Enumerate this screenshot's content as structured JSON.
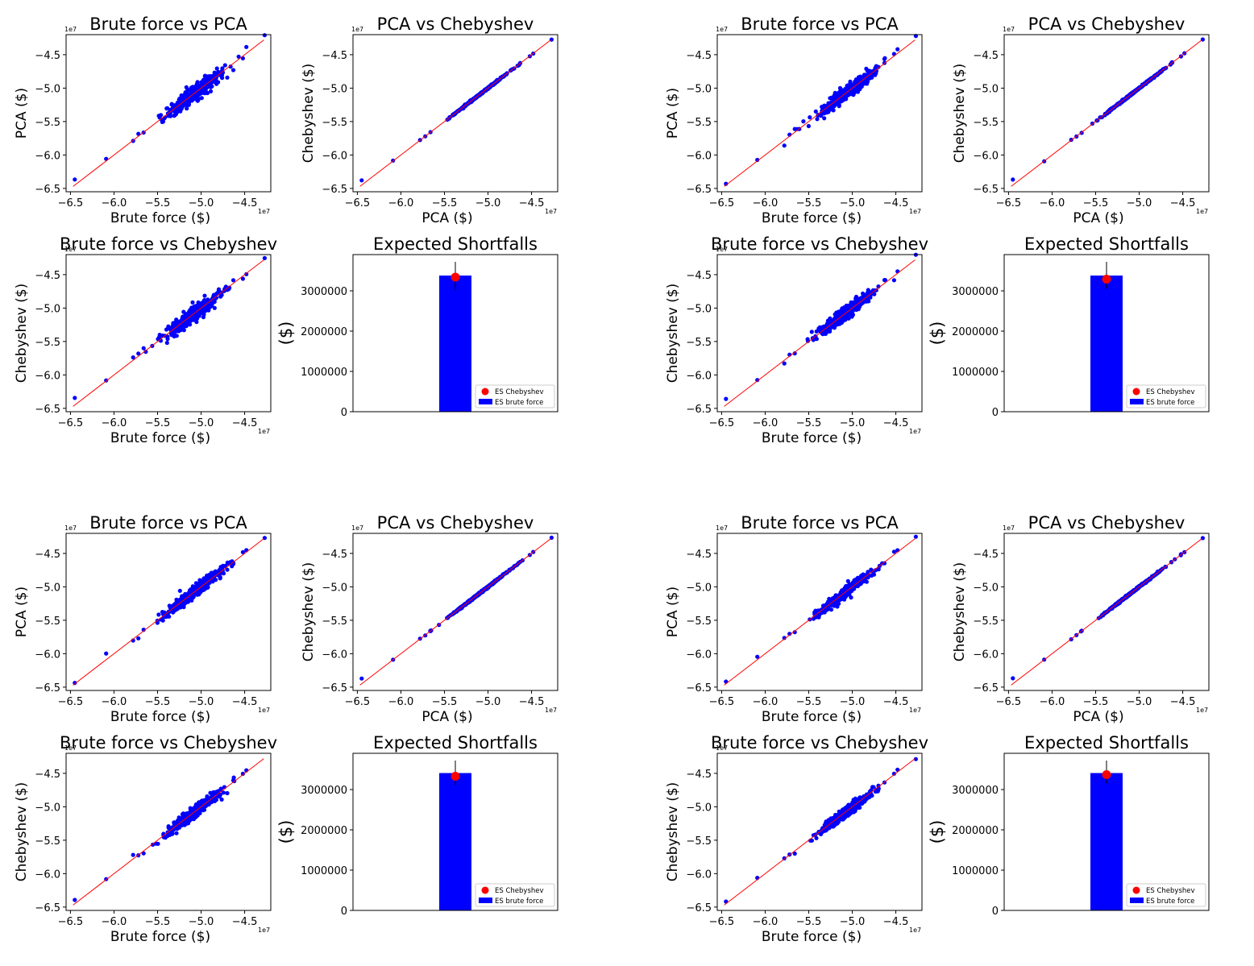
{
  "colors": {
    "scatter": "#0000ff",
    "line": "#ff0000",
    "bar": "#0000ff",
    "marker": "#ff0000",
    "axis": "#000000",
    "background": "#ffffff"
  },
  "chart_data": [
    {
      "group": "top-left",
      "subplots": [
        {
          "type": "scatter",
          "title": "Brute force vs PCA",
          "xlabel": "Brute force ($)",
          "ylabel": "PCA ($)",
          "offset_text": "1e7",
          "xlim": [
            -6.55,
            -4.2
          ],
          "ylim": [
            -6.55,
            -4.2
          ],
          "xticks": [
            -6.5,
            -6.0,
            -5.5,
            -5.0,
            -4.5
          ],
          "yticks": [
            -6.5,
            -6.0,
            -5.5,
            -5.0,
            -4.5
          ],
          "tick_labels": [
            "−6.5",
            "−6.0",
            "−5.5",
            "−5.0",
            "−4.5"
          ],
          "identity_line": [
            -6.47,
            -4.28
          ],
          "spread": 0.06
        },
        {
          "type": "scatter",
          "title": "PCA vs Chebyshev",
          "xlabel": "PCA ($)",
          "ylabel": "Chebyshev ($)",
          "offset_text": "1e7",
          "xlim": [
            -6.55,
            -4.2
          ],
          "ylim": [
            -6.55,
            -4.2
          ],
          "xticks": [
            -6.5,
            -6.0,
            -5.5,
            -5.0,
            -4.5
          ],
          "yticks": [
            -6.5,
            -6.0,
            -5.5,
            -5.0,
            -4.5
          ],
          "tick_labels": [
            "−6.5",
            "−6.0",
            "−5.5",
            "−5.0",
            "−4.5"
          ],
          "identity_line": [
            -6.47,
            -4.28
          ],
          "spread": 0.006
        },
        {
          "type": "scatter",
          "title": "Brute force vs Chebyshev",
          "xlabel": "Brute force ($)",
          "ylabel": "Chebyshev ($)",
          "offset_text": "1e7",
          "xlim": [
            -6.55,
            -4.2
          ],
          "ylim": [
            -6.55,
            -4.2
          ],
          "xticks": [
            -6.5,
            -6.0,
            -5.5,
            -5.0,
            -4.5
          ],
          "yticks": [
            -6.5,
            -6.0,
            -5.5,
            -5.0,
            -4.5
          ],
          "tick_labels": [
            "−6.5",
            "−6.0",
            "−5.5",
            "−5.0",
            "−4.5"
          ],
          "identity_line": [
            -6.47,
            -4.28
          ],
          "spread": 0.06
        },
        {
          "type": "bar",
          "title": "Expected Shortfalls",
          "ylabel": "($)",
          "ylim": [
            0,
            3900000
          ],
          "yticks": [
            0,
            1000000,
            2000000,
            3000000
          ],
          "ytick_labels": [
            "0",
            "1000000",
            "2000000",
            "3000000"
          ],
          "bar_value": 3380000,
          "marker_value": 3340000,
          "error_range": [
            3000000,
            3720000
          ],
          "legend": [
            "ES Chebyshev",
            "ES brute force"
          ]
        }
      ]
    },
    {
      "group": "top-right",
      "subplots": [
        {
          "type": "scatter",
          "title": "Brute force vs PCA",
          "xlabel": "Brute force ($)",
          "ylabel": "PCA ($)",
          "offset_text": "1e7",
          "xlim": [
            -6.55,
            -4.2
          ],
          "ylim": [
            -6.55,
            -4.2
          ],
          "xticks": [
            -6.5,
            -6.0,
            -5.5,
            -5.0,
            -4.5
          ],
          "yticks": [
            -6.5,
            -6.0,
            -5.5,
            -5.0,
            -4.5
          ],
          "tick_labels": [
            "−6.5",
            "−6.0",
            "−5.5",
            "−5.0",
            "−4.5"
          ],
          "identity_line": [
            -6.47,
            -4.28
          ],
          "spread": 0.045
        },
        {
          "type": "scatter",
          "title": "PCA vs Chebyshev",
          "xlabel": "PCA ($)",
          "ylabel": "Chebyshev ($)",
          "offset_text": "1e7",
          "xlim": [
            -6.55,
            -4.2
          ],
          "ylim": [
            -6.55,
            -4.2
          ],
          "xticks": [
            -6.5,
            -6.0,
            -5.5,
            -5.0,
            -4.5
          ],
          "yticks": [
            -6.5,
            -6.0,
            -5.5,
            -5.0,
            -4.5
          ],
          "tick_labels": [
            "−6.5",
            "−6.0",
            "−5.5",
            "−5.0",
            "−4.5"
          ],
          "identity_line": [
            -6.47,
            -4.28
          ],
          "spread": 0.006
        },
        {
          "type": "scatter",
          "title": "Brute force vs Chebyshev",
          "xlabel": "Brute force ($)",
          "ylabel": "Chebyshev ($)",
          "offset_text": "1e7",
          "xlim": [
            -6.55,
            -4.2
          ],
          "ylim": [
            -6.55,
            -4.2
          ],
          "xticks": [
            -6.5,
            -6.0,
            -5.5,
            -5.0,
            -4.5
          ],
          "yticks": [
            -6.5,
            -6.0,
            -5.5,
            -5.0,
            -4.5
          ],
          "tick_labels": [
            "−6.5",
            "−6.0",
            "−5.5",
            "−5.0",
            "−4.5"
          ],
          "identity_line": [
            -6.47,
            -4.28
          ],
          "spread": 0.045
        },
        {
          "type": "bar",
          "title": "Expected Shortfalls",
          "ylabel": "($)",
          "ylim": [
            0,
            3900000
          ],
          "yticks": [
            0,
            1000000,
            2000000,
            3000000
          ],
          "ytick_labels": [
            "0",
            "1000000",
            "2000000",
            "3000000"
          ],
          "bar_value": 3380000,
          "marker_value": 3290000,
          "error_range": [
            3050000,
            3720000
          ],
          "legend": [
            "ES Chebyshev",
            "ES brute force"
          ]
        }
      ]
    },
    {
      "group": "bottom-left",
      "subplots": [
        {
          "type": "scatter",
          "title": "Brute force vs PCA",
          "xlabel": "Brute force ($)",
          "ylabel": "PCA ($)",
          "offset_text": "1e7",
          "xlim": [
            -6.55,
            -4.2
          ],
          "ylim": [
            -6.55,
            -4.2
          ],
          "xticks": [
            -6.5,
            -6.0,
            -5.5,
            -5.0,
            -4.5
          ],
          "yticks": [
            -6.5,
            -6.0,
            -5.5,
            -5.0,
            -4.5
          ],
          "tick_labels": [
            "−6.5",
            "−6.0",
            "−5.5",
            "−5.0",
            "−4.5"
          ],
          "identity_line": [
            -6.47,
            -4.28
          ],
          "spread": 0.045
        },
        {
          "type": "scatter",
          "title": "PCA vs Chebyshev",
          "xlabel": "PCA ($)",
          "ylabel": "Chebyshev ($)",
          "offset_text": "1e7",
          "xlim": [
            -6.55,
            -4.2
          ],
          "ylim": [
            -6.55,
            -4.2
          ],
          "xticks": [
            -6.5,
            -6.0,
            -5.5,
            -5.0,
            -4.5
          ],
          "yticks": [
            -6.5,
            -6.0,
            -5.5,
            -5.0,
            -4.5
          ],
          "tick_labels": [
            "−6.5",
            "−6.0",
            "−5.5",
            "−5.0",
            "−4.5"
          ],
          "identity_line": [
            -6.47,
            -4.28
          ],
          "spread": 0.006
        },
        {
          "type": "scatter",
          "title": "Brute force vs Chebyshev",
          "xlabel": "Brute force ($)",
          "ylabel": "Chebyshev ($)",
          "offset_text": "1e7",
          "xlim": [
            -6.55,
            -4.2
          ],
          "ylim": [
            -6.55,
            -4.2
          ],
          "xticks": [
            -6.5,
            -6.0,
            -5.5,
            -5.0,
            -4.5
          ],
          "yticks": [
            -6.5,
            -6.0,
            -5.5,
            -5.0,
            -4.5
          ],
          "tick_labels": [
            "−6.5",
            "−6.0",
            "−5.5",
            "−5.0",
            "−4.5"
          ],
          "identity_line": [
            -6.47,
            -4.28
          ],
          "spread": 0.045
        },
        {
          "type": "bar",
          "title": "Expected Shortfalls",
          "ylabel": "($)",
          "ylim": [
            0,
            3900000
          ],
          "yticks": [
            0,
            1000000,
            2000000,
            3000000
          ],
          "ytick_labels": [
            "0",
            "1000000",
            "2000000",
            "3000000"
          ],
          "bar_value": 3410000,
          "marker_value": 3330000,
          "error_range": [
            3100000,
            3720000
          ],
          "legend": [
            "ES Chebyshev",
            "ES brute force"
          ]
        }
      ]
    },
    {
      "group": "bottom-right",
      "subplots": [
        {
          "type": "scatter",
          "title": "Brute force vs PCA",
          "xlabel": "Brute force ($)",
          "ylabel": "PCA ($)",
          "offset_text": "1e7",
          "xlim": [
            -6.55,
            -4.2
          ],
          "ylim": [
            -6.55,
            -4.2
          ],
          "xticks": [
            -6.5,
            -6.0,
            -5.5,
            -5.0,
            -4.5
          ],
          "yticks": [
            -6.5,
            -6.0,
            -5.5,
            -5.0,
            -4.5
          ],
          "tick_labels": [
            "−6.5",
            "−6.0",
            "−5.5",
            "−5.0",
            "−4.5"
          ],
          "identity_line": [
            -6.47,
            -4.28
          ],
          "spread": 0.04
        },
        {
          "type": "scatter",
          "title": "PCA vs Chebyshev",
          "xlabel": "PCA ($)",
          "ylabel": "Chebyshev ($)",
          "offset_text": "1e7",
          "xlim": [
            -6.55,
            -4.2
          ],
          "ylim": [
            -6.55,
            -4.2
          ],
          "xticks": [
            -6.5,
            -6.0,
            -5.5,
            -5.0,
            -4.5
          ],
          "yticks": [
            -6.5,
            -6.0,
            -5.5,
            -5.0,
            -4.5
          ],
          "tick_labels": [
            "−6.5",
            "−6.0",
            "−5.5",
            "−5.0",
            "−4.5"
          ],
          "identity_line": [
            -6.47,
            -4.28
          ],
          "spread": 0.006
        },
        {
          "type": "scatter",
          "title": "Brute force vs Chebyshev",
          "xlabel": "Brute force ($)",
          "ylabel": "Chebyshev ($)",
          "offset_text": "1e7",
          "xlim": [
            -6.55,
            -4.2
          ],
          "ylim": [
            -6.55,
            -4.2
          ],
          "xticks": [
            -6.5,
            -6.0,
            -5.5,
            -5.0,
            -4.5
          ],
          "yticks": [
            -6.5,
            -6.0,
            -5.5,
            -5.0,
            -4.5
          ],
          "tick_labels": [
            "−6.5",
            "−6.0",
            "−5.5",
            "−5.0",
            "−4.5"
          ],
          "identity_line": [
            -6.47,
            -4.28
          ],
          "spread": 0.04
        },
        {
          "type": "bar",
          "title": "Expected Shortfalls",
          "ylabel": "($)",
          "ylim": [
            0,
            3900000
          ],
          "yticks": [
            0,
            1000000,
            2000000,
            3000000
          ],
          "ytick_labels": [
            "0",
            "1000000",
            "2000000",
            "3000000"
          ],
          "bar_value": 3410000,
          "marker_value": 3370000,
          "error_range": [
            3150000,
            3720000
          ],
          "legend": [
            "ES Chebyshev",
            "ES brute force"
          ]
        }
      ]
    }
  ]
}
